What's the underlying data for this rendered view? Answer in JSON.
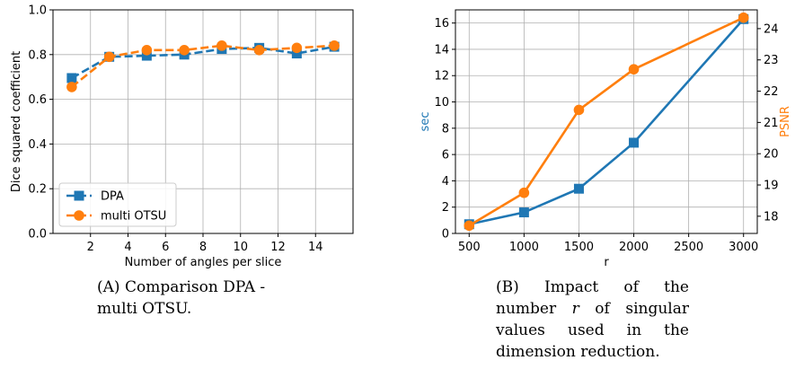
{
  "chart_data": [
    {
      "type": "line",
      "panel": "A",
      "x": [
        1,
        3,
        5,
        7,
        9,
        11,
        13,
        15
      ],
      "series": [
        {
          "name": "DPA",
          "color": "#1f77b4",
          "marker": "square",
          "linestyle": "dashed",
          "values": [
            0.695,
            0.79,
            0.795,
            0.8,
            0.825,
            0.83,
            0.805,
            0.835
          ]
        },
        {
          "name": "multi OTSU",
          "color": "#ff7f0e",
          "marker": "circle",
          "linestyle": "dashed",
          "values": [
            0.655,
            0.79,
            0.82,
            0.82,
            0.84,
            0.82,
            0.83,
            0.84
          ]
        }
      ],
      "xlabel": "Number of angles per slice",
      "ylabel": "Dice squared coefficient",
      "xlim": [
        0,
        16
      ],
      "ylim": [
        0.0,
        1.0
      ],
      "xticks": [
        "2",
        "4",
        "6",
        "8",
        "10",
        "12",
        "14"
      ],
      "yticks": [
        "0.0",
        "0.2",
        "0.4",
        "0.6",
        "0.8",
        "1.0"
      ],
      "grid": true,
      "legend": "lower-left"
    },
    {
      "type": "line",
      "panel": "B",
      "x": [
        500,
        1000,
        1500,
        2000,
        3000
      ],
      "series": [
        {
          "name": "sec",
          "axis": "left",
          "color": "#1f77b4",
          "marker": "square",
          "linestyle": "solid",
          "values": [
            0.7,
            1.6,
            3.4,
            6.9,
            16.3
          ]
        },
        {
          "name": "PSNR",
          "axis": "right",
          "color": "#ff7f0e",
          "marker": "circle",
          "linestyle": "solid",
          "values": [
            17.7,
            18.75,
            21.4,
            22.7,
            24.35
          ]
        }
      ],
      "xlabel": "r",
      "ylabel": "sec",
      "ylabel_right": "PSNR",
      "xlim": [
        375,
        3125
      ],
      "ylim": [
        0,
        17
      ],
      "ylim_right": [
        17.45,
        24.6
      ],
      "xticks": [
        "500",
        "1000",
        "1500",
        "2000",
        "2500",
        "3000"
      ],
      "yticks": [
        "0",
        "2",
        "4",
        "6",
        "8",
        "10",
        "12",
        "14",
        "16"
      ],
      "yticks_right": [
        "18",
        "19",
        "20",
        "21",
        "22",
        "23",
        "24"
      ],
      "grid": true
    }
  ],
  "captions": {
    "a": {
      "tag": "(A)",
      "text": "Comparison DPA - multi OTSU."
    },
    "b": {
      "tag": "(B)",
      "text_before": "Impact of the number",
      "variable": "r",
      "text_after": "of singular values used in the dimension reduction."
    }
  }
}
